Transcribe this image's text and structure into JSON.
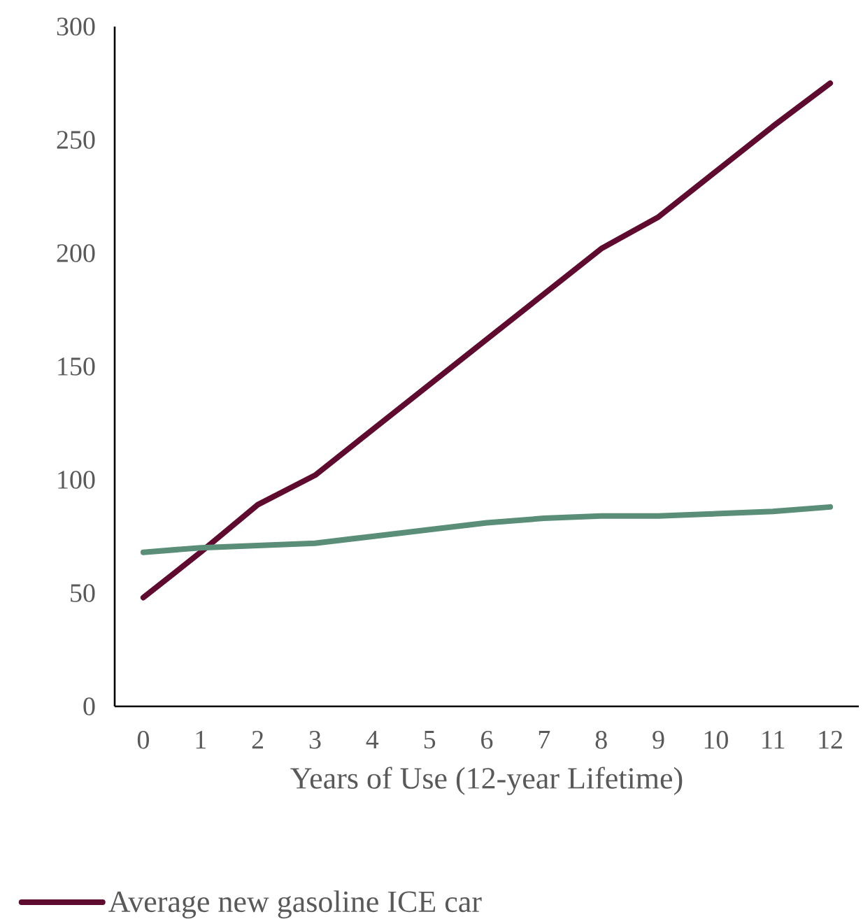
{
  "chart_data": {
    "type": "line",
    "xlabel": "Years of Use (12-year Lifetime)",
    "categories": [
      "0",
      "1",
      "2",
      "3",
      "4",
      "5",
      "6",
      "7",
      "8",
      "9",
      "10",
      "11",
      "12"
    ],
    "series": [
      {
        "name": "Average new gasoline ICE car",
        "color": "#5e0b2f",
        "values": [
          48,
          68,
          89,
          102,
          122,
          142,
          162,
          182,
          202,
          216,
          236,
          256,
          275
        ]
      },
      {
        "color": "#5a8e78",
        "values": [
          68,
          70,
          71,
          72,
          75,
          78,
          81,
          83,
          84,
          84,
          85,
          86,
          88
        ]
      }
    ],
    "ylim": [
      0,
      300
    ],
    "yticks": [
      0,
      50,
      100,
      150,
      200,
      250,
      300
    ],
    "grid": false,
    "legend": "bottom",
    "marker": "none",
    "line_style": "solid"
  }
}
